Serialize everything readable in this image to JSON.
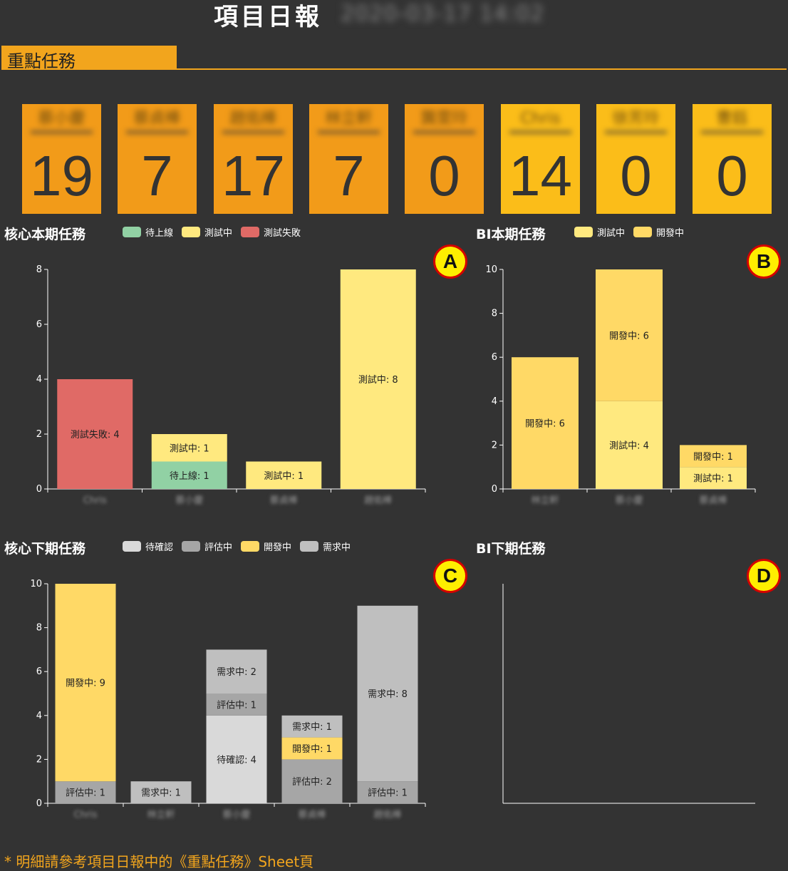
{
  "header": {
    "title": "項目日報",
    "timestamp": "2020-03-17 14:02"
  },
  "section": {
    "title": "重點任務"
  },
  "cards": [
    {
      "name": "蔡小慶",
      "value": "19",
      "color": "#f29b19"
    },
    {
      "name": "蔡貞棒",
      "value": "7",
      "color": "#f29b19"
    },
    {
      "name": "趙佑棒",
      "value": "17",
      "color": "#f29b19"
    },
    {
      "name": "林立軒",
      "value": "7",
      "color": "#f29b19"
    },
    {
      "name": "龔雯玲",
      "value": "0",
      "color": "#f29b19"
    },
    {
      "name": "Chris",
      "value": "14",
      "color": "#fbbd19"
    },
    {
      "name": "徐芳玲",
      "value": "0",
      "color": "#fbbd19"
    },
    {
      "name": "曹鈺",
      "value": "0",
      "color": "#fbbd19"
    }
  ],
  "badges": {
    "a": "A",
    "b": "B",
    "c": "C",
    "d": "D"
  },
  "footer": {
    "note": "* 明細請參考項目日報中的《重點任務》Sheet頁"
  },
  "chart_data": [
    {
      "id": "A",
      "type": "bar",
      "stacked": true,
      "title": "核心本期任務",
      "legend": [
        {
          "name": "待上線",
          "color": "#91d1a4"
        },
        {
          "name": "測試中",
          "color": "#ffe97f"
        },
        {
          "name": "測試失敗",
          "color": "#e06a66"
        }
      ],
      "categories": [
        "Chris",
        "蔡小慶",
        "蔡貞棒",
        "趙佑棒"
      ],
      "ylim": [
        0,
        8
      ],
      "yticks": [
        0,
        2,
        4,
        6,
        8
      ],
      "series": [
        {
          "name": "待上線",
          "color": "#91d1a4",
          "values": [
            0,
            1,
            0,
            0
          ]
        },
        {
          "name": "測試中",
          "color": "#ffe97f",
          "values": [
            0,
            1,
            1,
            8
          ]
        },
        {
          "name": "測試失敗",
          "color": "#e06a66",
          "values": [
            4,
            0,
            0,
            0
          ]
        }
      ]
    },
    {
      "id": "B",
      "type": "bar",
      "stacked": true,
      "title": "BI本期任務",
      "legend": [
        {
          "name": "測試中",
          "color": "#ffe97f"
        },
        {
          "name": "開發中",
          "color": "#ffd966"
        }
      ],
      "categories": [
        "林立軒",
        "蔡小慶",
        "蔡貞棒"
      ],
      "ylim": [
        0,
        10
      ],
      "yticks": [
        0,
        2,
        4,
        6,
        8,
        10
      ],
      "series": [
        {
          "name": "測試中",
          "color": "#ffe97f",
          "values": [
            0,
            4,
            1
          ]
        },
        {
          "name": "開發中",
          "color": "#ffd966",
          "values": [
            6,
            6,
            1
          ]
        }
      ]
    },
    {
      "id": "C",
      "type": "bar",
      "stacked": true,
      "title": "核心下期任務",
      "legend": [
        {
          "name": "待確認",
          "color": "#d9d9d9"
        },
        {
          "name": "評估中",
          "color": "#a6a6a6"
        },
        {
          "name": "開發中",
          "color": "#ffd966"
        },
        {
          "name": "需求中",
          "color": "#bfbfbf"
        }
      ],
      "categories": [
        "Chris",
        "林立軒",
        "蔡小慶",
        "蔡貞棒",
        "趙佑棒"
      ],
      "ylim": [
        0,
        10
      ],
      "yticks": [
        0,
        2,
        4,
        6,
        8,
        10
      ],
      "series": [
        {
          "name": "待確認",
          "color": "#d9d9d9",
          "values": [
            0,
            0,
            4,
            0,
            0
          ]
        },
        {
          "name": "評估中",
          "color": "#a6a6a6",
          "values": [
            1,
            0,
            1,
            2,
            1
          ]
        },
        {
          "name": "開發中",
          "color": "#ffd966",
          "values": [
            9,
            0,
            0,
            1,
            0
          ]
        },
        {
          "name": "需求中",
          "color": "#bfbfbf",
          "values": [
            0,
            1,
            2,
            1,
            8
          ]
        }
      ]
    },
    {
      "id": "D",
      "type": "bar",
      "stacked": true,
      "title": "BI下期任務",
      "legend": [],
      "categories": [],
      "series": []
    }
  ]
}
